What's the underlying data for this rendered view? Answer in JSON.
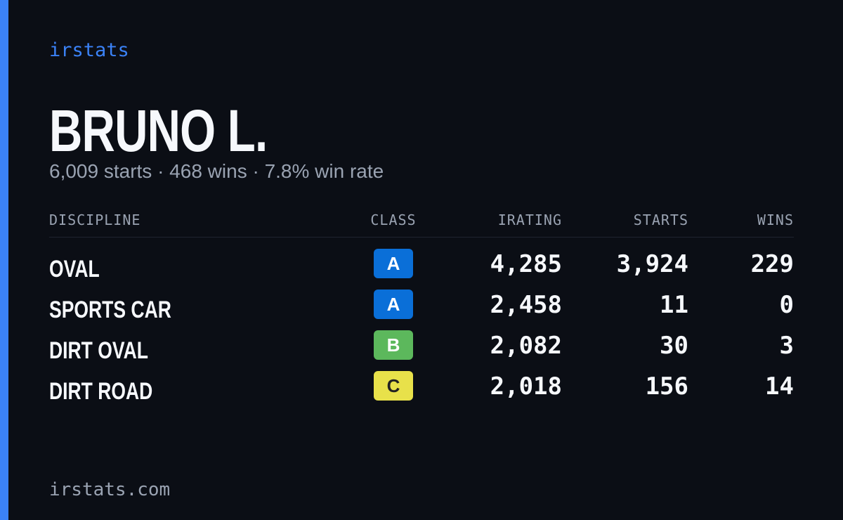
{
  "brand": "irstats",
  "profile": {
    "name": "BRUNO L.",
    "summary": "6,009 starts · 468 wins · 7.8% win rate"
  },
  "table": {
    "headers": [
      "DISCIPLINE",
      "CLASS",
      "IRATING",
      "STARTS",
      "WINS"
    ],
    "rows": [
      [
        "OVAL",
        "A",
        "4,285",
        "3,924",
        "229"
      ],
      [
        "SPORTS CAR",
        "A",
        "2,458",
        "11",
        "0"
      ],
      [
        "DIRT OVAL",
        "B",
        "2,082",
        "30",
        "3"
      ],
      [
        "DIRT ROAD",
        "C",
        "2,018",
        "156",
        "14"
      ]
    ]
  },
  "footer": "irstats.com"
}
